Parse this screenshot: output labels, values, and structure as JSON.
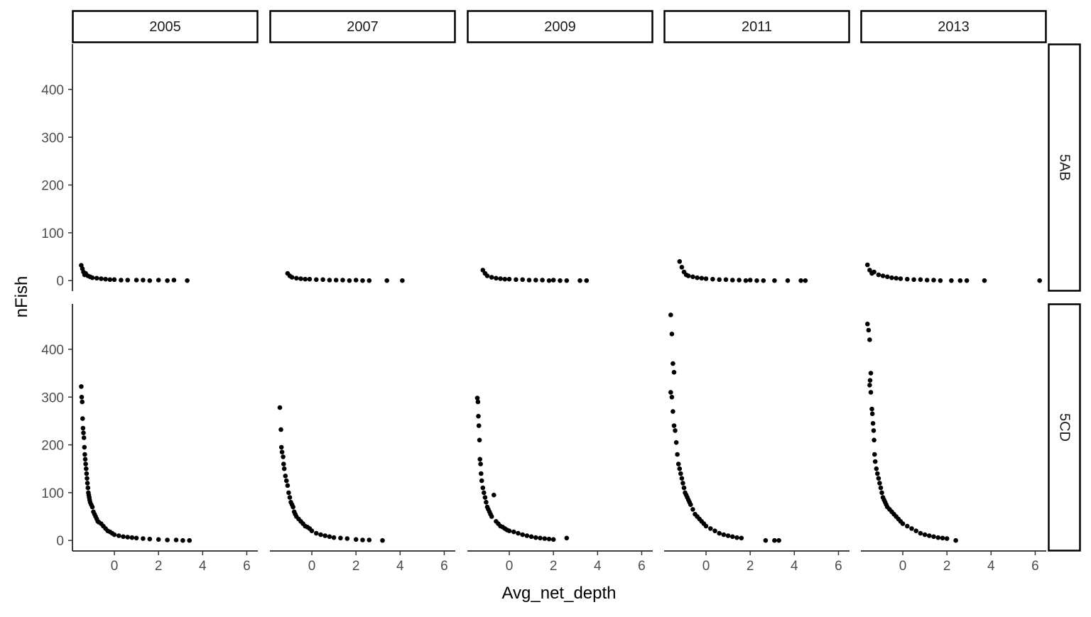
{
  "chart_data": {
    "type": "scatter",
    "xlabel": "Avg_net_depth",
    "ylabel": "nFish",
    "xlim": [
      -1.9,
      6.5
    ],
    "ylim": [
      -22,
      495
    ],
    "x_ticks": [
      0,
      2,
      4,
      6
    ],
    "y_ticks": [
      0,
      100,
      200,
      300,
      400
    ],
    "grid": false,
    "point_color": "#000000",
    "columns": [
      "2005",
      "2007",
      "2009",
      "2011",
      "2013"
    ],
    "rows": [
      "5AB",
      "5CD"
    ],
    "panels": [
      {
        "year": "2005",
        "area": "5AB",
        "points": [
          [
            -1.5,
            32
          ],
          [
            -1.45,
            25
          ],
          [
            -1.4,
            18
          ],
          [
            -1.35,
            12
          ],
          [
            -1.3,
            15
          ],
          [
            -1.2,
            10
          ],
          [
            -1.1,
            8
          ],
          [
            -1.0,
            6
          ],
          [
            -0.8,
            5
          ],
          [
            -0.6,
            4
          ],
          [
            -0.4,
            3
          ],
          [
            -0.2,
            2
          ],
          [
            0,
            2
          ],
          [
            0.3,
            1
          ],
          [
            0.6,
            1
          ],
          [
            1.0,
            1
          ],
          [
            1.3,
            1
          ],
          [
            1.6,
            0
          ],
          [
            2.0,
            1
          ],
          [
            2.4,
            0
          ],
          [
            2.7,
            1
          ],
          [
            3.3,
            0
          ]
        ]
      },
      {
        "year": "2007",
        "area": "5AB",
        "points": [
          [
            -1.1,
            15
          ],
          [
            -1.0,
            10
          ],
          [
            -0.9,
            7
          ],
          [
            -0.7,
            5
          ],
          [
            -0.5,
            4
          ],
          [
            -0.3,
            3
          ],
          [
            -0.1,
            3
          ],
          [
            0.2,
            2
          ],
          [
            0.5,
            2
          ],
          [
            0.8,
            1
          ],
          [
            1.1,
            1
          ],
          [
            1.4,
            1
          ],
          [
            1.7,
            0
          ],
          [
            2.0,
            1
          ],
          [
            2.3,
            0
          ],
          [
            2.6,
            0
          ],
          [
            3.4,
            0
          ],
          [
            4.1,
            0
          ]
        ]
      },
      {
        "year": "2009",
        "area": "5AB",
        "points": [
          [
            -1.2,
            22
          ],
          [
            -1.1,
            15
          ],
          [
            -1.0,
            10
          ],
          [
            -0.8,
            7
          ],
          [
            -0.6,
            5
          ],
          [
            -0.4,
            4
          ],
          [
            -0.2,
            3
          ],
          [
            0,
            3
          ],
          [
            0.3,
            2
          ],
          [
            0.6,
            2
          ],
          [
            0.9,
            1
          ],
          [
            1.2,
            1
          ],
          [
            1.5,
            1
          ],
          [
            1.8,
            0
          ],
          [
            2.0,
            1
          ],
          [
            2.3,
            0
          ],
          [
            2.6,
            0
          ],
          [
            3.2,
            0
          ],
          [
            3.5,
            0
          ]
        ]
      },
      {
        "year": "2011",
        "area": "5AB",
        "points": [
          [
            -1.2,
            40
          ],
          [
            -1.1,
            28
          ],
          [
            -1.0,
            18
          ],
          [
            -0.9,
            12
          ],
          [
            -0.8,
            10
          ],
          [
            -0.6,
            8
          ],
          [
            -0.4,
            6
          ],
          [
            -0.2,
            5
          ],
          [
            0,
            4
          ],
          [
            0.3,
            3
          ],
          [
            0.6,
            2
          ],
          [
            0.9,
            2
          ],
          [
            1.2,
            1
          ],
          [
            1.5,
            1
          ],
          [
            1.8,
            0
          ],
          [
            2.0,
            1
          ],
          [
            2.3,
            0
          ],
          [
            2.6,
            0
          ],
          [
            3.1,
            0
          ],
          [
            3.7,
            0
          ],
          [
            4.3,
            0
          ],
          [
            4.5,
            0
          ]
        ]
      },
      {
        "year": "2013",
        "area": "5AB",
        "points": [
          [
            -1.6,
            33
          ],
          [
            -1.5,
            22
          ],
          [
            -1.4,
            15
          ],
          [
            -1.3,
            18
          ],
          [
            -1.1,
            12
          ],
          [
            -0.9,
            10
          ],
          [
            -0.7,
            8
          ],
          [
            -0.5,
            6
          ],
          [
            -0.3,
            5
          ],
          [
            -0.1,
            4
          ],
          [
            0.2,
            3
          ],
          [
            0.5,
            2
          ],
          [
            0.8,
            2
          ],
          [
            1.1,
            1
          ],
          [
            1.4,
            1
          ],
          [
            1.7,
            0
          ],
          [
            2.2,
            0
          ],
          [
            2.6,
            0
          ],
          [
            2.9,
            0
          ],
          [
            3.7,
            0
          ],
          [
            6.2,
            0
          ]
        ]
      },
      {
        "year": "2005",
        "area": "5CD",
        "points": [
          [
            -1.5,
            322
          ],
          [
            -1.48,
            300
          ],
          [
            -1.46,
            290
          ],
          [
            -1.44,
            255
          ],
          [
            -1.42,
            235
          ],
          [
            -1.4,
            225
          ],
          [
            -1.38,
            215
          ],
          [
            -1.36,
            195
          ],
          [
            -1.34,
            180
          ],
          [
            -1.32,
            170
          ],
          [
            -1.3,
            160
          ],
          [
            -1.28,
            150
          ],
          [
            -1.26,
            140
          ],
          [
            -1.24,
            130
          ],
          [
            -1.22,
            120
          ],
          [
            -1.2,
            110
          ],
          [
            -1.18,
            100
          ],
          [
            -1.16,
            95
          ],
          [
            -1.14,
            90
          ],
          [
            -1.12,
            85
          ],
          [
            -1.1,
            80
          ],
          [
            -1.05,
            75
          ],
          [
            -1.0,
            70
          ],
          [
            -0.95,
            60
          ],
          [
            -0.9,
            55
          ],
          [
            -0.85,
            50
          ],
          [
            -0.8,
            45
          ],
          [
            -0.75,
            40
          ],
          [
            -0.7,
            38
          ],
          [
            -0.6,
            35
          ],
          [
            -0.5,
            30
          ],
          [
            -0.4,
            25
          ],
          [
            -0.3,
            20
          ],
          [
            -0.2,
            18
          ],
          [
            -0.1,
            15
          ],
          [
            0,
            12
          ],
          [
            0.2,
            10
          ],
          [
            0.4,
            8
          ],
          [
            0.6,
            7
          ],
          [
            0.8,
            6
          ],
          [
            1.0,
            5
          ],
          [
            1.3,
            4
          ],
          [
            1.6,
            3
          ],
          [
            2.0,
            2
          ],
          [
            2.4,
            1
          ],
          [
            2.8,
            1
          ],
          [
            3.1,
            0
          ],
          [
            3.4,
            0
          ]
        ]
      },
      {
        "year": "2007",
        "area": "5CD",
        "points": [
          [
            -1.45,
            278
          ],
          [
            -1.4,
            232
          ],
          [
            -1.38,
            195
          ],
          [
            -1.35,
            185
          ],
          [
            -1.3,
            175
          ],
          [
            -1.28,
            160
          ],
          [
            -1.25,
            150
          ],
          [
            -1.2,
            135
          ],
          [
            -1.15,
            125
          ],
          [
            -1.1,
            115
          ],
          [
            -1.05,
            100
          ],
          [
            -1.0,
            90
          ],
          [
            -0.95,
            80
          ],
          [
            -0.9,
            75
          ],
          [
            -0.85,
            70
          ],
          [
            -0.8,
            60
          ],
          [
            -0.75,
            55
          ],
          [
            -0.7,
            50
          ],
          [
            -0.6,
            45
          ],
          [
            -0.5,
            40
          ],
          [
            -0.4,
            35
          ],
          [
            -0.3,
            30
          ],
          [
            -0.2,
            28
          ],
          [
            -0.1,
            25
          ],
          [
            0,
            20
          ],
          [
            0.2,
            15
          ],
          [
            0.4,
            12
          ],
          [
            0.6,
            10
          ],
          [
            0.8,
            8
          ],
          [
            1.0,
            6
          ],
          [
            1.3,
            5
          ],
          [
            1.6,
            4
          ],
          [
            2.0,
            2
          ],
          [
            2.3,
            1
          ],
          [
            2.6,
            1
          ],
          [
            3.2,
            0
          ]
        ]
      },
      {
        "year": "2009",
        "area": "5CD",
        "points": [
          [
            -1.45,
            298
          ],
          [
            -1.42,
            290
          ],
          [
            -1.4,
            260
          ],
          [
            -1.38,
            240
          ],
          [
            -1.35,
            210
          ],
          [
            -1.33,
            170
          ],
          [
            -1.3,
            160
          ],
          [
            -1.28,
            140
          ],
          [
            -1.25,
            125
          ],
          [
            -1.2,
            110
          ],
          [
            -1.15,
            100
          ],
          [
            -1.1,
            90
          ],
          [
            -1.05,
            80
          ],
          [
            -1.0,
            70
          ],
          [
            -0.95,
            65
          ],
          [
            -0.9,
            60
          ],
          [
            -0.85,
            55
          ],
          [
            -0.8,
            50
          ],
          [
            -0.7,
            95
          ],
          [
            -0.6,
            40
          ],
          [
            -0.5,
            35
          ],
          [
            -0.4,
            30
          ],
          [
            -0.3,
            28
          ],
          [
            -0.2,
            25
          ],
          [
            -0.1,
            22
          ],
          [
            0,
            20
          ],
          [
            0.2,
            18
          ],
          [
            0.4,
            15
          ],
          [
            0.6,
            12
          ],
          [
            0.8,
            10
          ],
          [
            1.0,
            8
          ],
          [
            1.2,
            6
          ],
          [
            1.4,
            5
          ],
          [
            1.6,
            4
          ],
          [
            1.8,
            3
          ],
          [
            2.0,
            2
          ],
          [
            2.6,
            5
          ]
        ]
      },
      {
        "year": "2011",
        "area": "5CD",
        "points": [
          [
            -1.6,
            472
          ],
          [
            -1.55,
            432
          ],
          [
            -1.5,
            370
          ],
          [
            -1.45,
            352
          ],
          [
            -1.6,
            310
          ],
          [
            -1.55,
            300
          ],
          [
            -1.5,
            270
          ],
          [
            -1.45,
            240
          ],
          [
            -1.4,
            230
          ],
          [
            -1.35,
            205
          ],
          [
            -1.3,
            180
          ],
          [
            -1.25,
            160
          ],
          [
            -1.2,
            150
          ],
          [
            -1.15,
            140
          ],
          [
            -1.1,
            130
          ],
          [
            -1.05,
            120
          ],
          [
            -1.0,
            110
          ],
          [
            -0.95,
            100
          ],
          [
            -0.9,
            95
          ],
          [
            -0.85,
            90
          ],
          [
            -0.8,
            85
          ],
          [
            -0.75,
            80
          ],
          [
            -0.7,
            75
          ],
          [
            -0.6,
            65
          ],
          [
            -0.5,
            55
          ],
          [
            -0.4,
            50
          ],
          [
            -0.3,
            45
          ],
          [
            -0.2,
            40
          ],
          [
            -0.1,
            35
          ],
          [
            0,
            30
          ],
          [
            0.2,
            25
          ],
          [
            0.4,
            20
          ],
          [
            0.6,
            15
          ],
          [
            0.8,
            12
          ],
          [
            1.0,
            10
          ],
          [
            1.2,
            8
          ],
          [
            1.4,
            6
          ],
          [
            1.6,
            5
          ],
          [
            2.7,
            0
          ],
          [
            3.1,
            0
          ],
          [
            3.3,
            0
          ]
        ]
      },
      {
        "year": "2013",
        "area": "5CD",
        "points": [
          [
            -1.6,
            453
          ],
          [
            -1.55,
            440
          ],
          [
            -1.5,
            420
          ],
          [
            -1.45,
            350
          ],
          [
            -1.48,
            335
          ],
          [
            -1.5,
            325
          ],
          [
            -1.45,
            310
          ],
          [
            -1.4,
            275
          ],
          [
            -1.38,
            265
          ],
          [
            -1.35,
            245
          ],
          [
            -1.32,
            230
          ],
          [
            -1.3,
            210
          ],
          [
            -1.28,
            180
          ],
          [
            -1.25,
            165
          ],
          [
            -1.2,
            150
          ],
          [
            -1.15,
            140
          ],
          [
            -1.1,
            130
          ],
          [
            -1.05,
            120
          ],
          [
            -1.0,
            110
          ],
          [
            -0.95,
            100
          ],
          [
            -0.9,
            90
          ],
          [
            -0.85,
            85
          ],
          [
            -0.8,
            80
          ],
          [
            -0.75,
            75
          ],
          [
            -0.7,
            70
          ],
          [
            -0.6,
            65
          ],
          [
            -0.5,
            60
          ],
          [
            -0.4,
            55
          ],
          [
            -0.3,
            50
          ],
          [
            -0.2,
            45
          ],
          [
            -0.1,
            40
          ],
          [
            0,
            35
          ],
          [
            0.2,
            30
          ],
          [
            0.4,
            25
          ],
          [
            0.6,
            20
          ],
          [
            0.8,
            15
          ],
          [
            1.0,
            12
          ],
          [
            1.2,
            10
          ],
          [
            1.4,
            8
          ],
          [
            1.6,
            6
          ],
          [
            1.8,
            5
          ],
          [
            2.0,
            4
          ],
          [
            2.4,
            0
          ]
        ]
      }
    ]
  }
}
